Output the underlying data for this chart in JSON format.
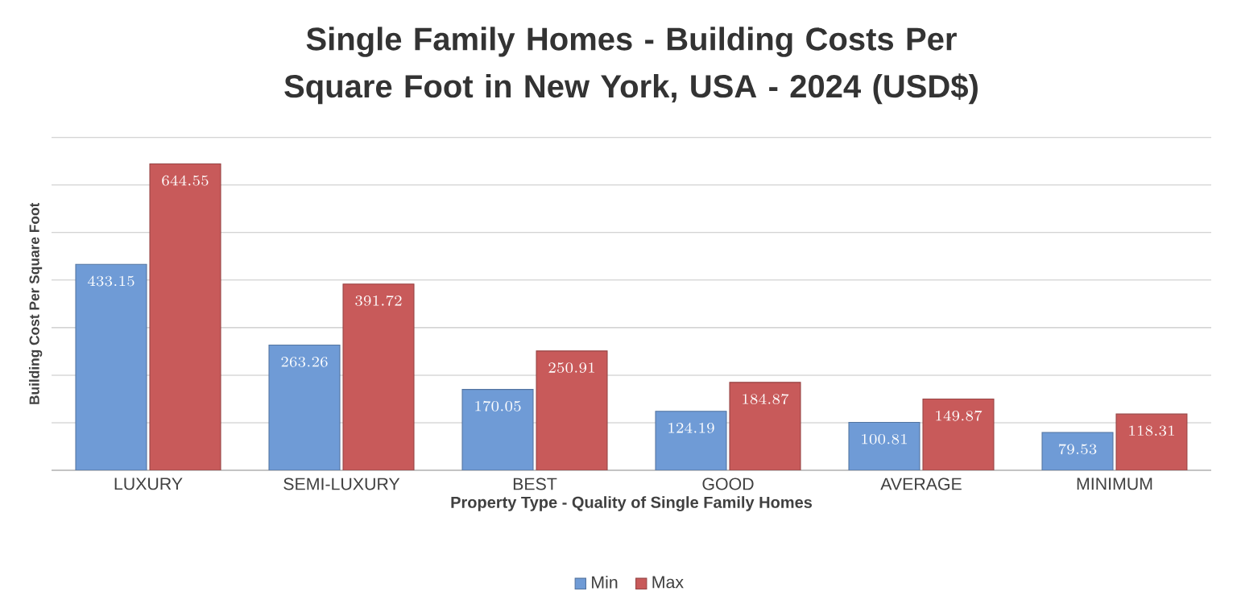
{
  "chart_data": {
    "type": "bar",
    "title": "Single Family Homes - Building Costs Per Square Foot in New York, USA - 2024 (USD$)",
    "xlabel": "Property Type - Quality of Single Family Homes",
    "ylabel": "Building Cost Per Square Foot",
    "categories": [
      "LUXURY",
      "SEMI-LUXURY",
      "BEST",
      "GOOD",
      "AVERAGE",
      "MINIMUM"
    ],
    "series": [
      {
        "name": "Min",
        "color": "#6f9bd6",
        "values": [
          433.15,
          263.26,
          170.05,
          124.19,
          100.81,
          79.53
        ]
      },
      {
        "name": "Max",
        "color": "#c85a5a",
        "values": [
          644.55,
          391.72,
          250.91,
          184.87,
          149.87,
          118.31
        ]
      }
    ],
    "ylim": [
      0,
      700
    ],
    "yticks": [
      {
        "value": 0,
        "label": null
      },
      {
        "value": 100,
        "label": null
      },
      {
        "value": 200,
        "label": null
      },
      {
        "value": 300,
        "label": null
      },
      {
        "value": 400,
        "label": null
      },
      {
        "value": 500,
        "label": null
      },
      {
        "value": 600,
        "label": null
      },
      {
        "value": 700,
        "label": null
      }
    ],
    "tick_labels": "x",
    "grid": "y",
    "legend": "bottom",
    "data_labels": true
  }
}
